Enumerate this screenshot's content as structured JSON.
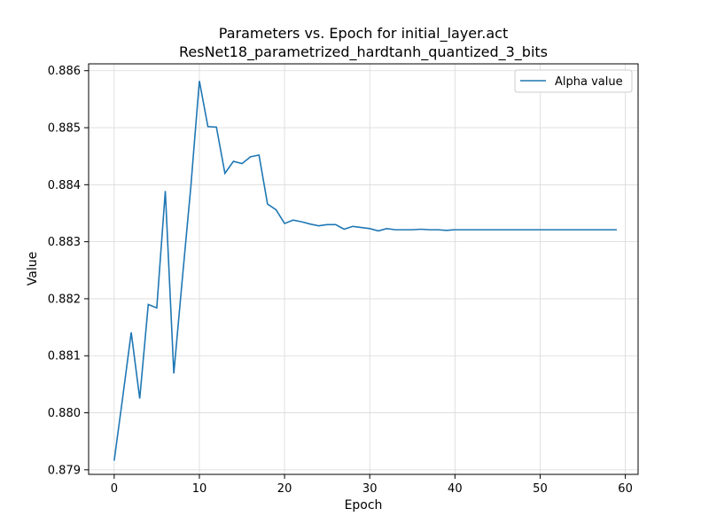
{
  "chart_data": {
    "type": "line",
    "title": "Parameters vs. Epoch for initial_layer.act",
    "subtitle": "ResNet18_parametrized_hardtanh_quantized_3_bits",
    "xlabel": "Epoch",
    "ylabel": "Value",
    "xlim": [
      -3,
      61.5
    ],
    "ylim": [
      0.87892,
      0.88612
    ],
    "xticks": [
      0,
      10,
      20,
      30,
      40,
      50,
      60
    ],
    "xtick_labels": [
      "0",
      "10",
      "20",
      "30",
      "40",
      "50",
      "60"
    ],
    "yticks": [
      0.879,
      0.88,
      0.881,
      0.882,
      0.883,
      0.884,
      0.885,
      0.886
    ],
    "ytick_labels": [
      "0.879",
      "0.880",
      "0.881",
      "0.882",
      "0.883",
      "0.884",
      "0.885",
      "0.886"
    ],
    "grid": true,
    "legend_position": "top-right",
    "series": [
      {
        "name": "Alpha value",
        "color": "#1f77b4",
        "x": [
          0,
          1,
          2,
          3,
          4,
          5,
          6,
          7,
          8,
          9,
          10,
          11,
          12,
          13,
          14,
          15,
          16,
          17,
          18,
          19,
          20,
          21,
          22,
          23,
          24,
          25,
          26,
          27,
          28,
          29,
          30,
          31,
          32,
          33,
          34,
          35,
          36,
          37,
          38,
          39,
          40,
          41,
          42,
          43,
          44,
          45,
          46,
          47,
          48,
          49,
          50,
          51,
          52,
          53,
          54,
          55,
          56,
          57,
          58,
          59
        ],
        "y": [
          0.87916,
          0.88027,
          0.88141,
          0.88025,
          0.8819,
          0.88184,
          0.88389,
          0.88069,
          0.88235,
          0.88397,
          0.88582,
          0.88502,
          0.88501,
          0.8842,
          0.88441,
          0.88437,
          0.88449,
          0.88452,
          0.88366,
          0.88356,
          0.88332,
          0.88338,
          0.88335,
          0.88331,
          0.88328,
          0.8833,
          0.8833,
          0.88322,
          0.88327,
          0.88325,
          0.88323,
          0.88319,
          0.88323,
          0.88321,
          0.88321,
          0.88321,
          0.88322,
          0.88321,
          0.88321,
          0.8832,
          0.88321,
          0.88321,
          0.88321,
          0.88321,
          0.88321,
          0.88321,
          0.88321,
          0.88321,
          0.88321,
          0.88321,
          0.88321,
          0.88321,
          0.88321,
          0.88321,
          0.88321,
          0.88321,
          0.88321,
          0.88321,
          0.88321,
          0.88321
        ]
      }
    ]
  }
}
